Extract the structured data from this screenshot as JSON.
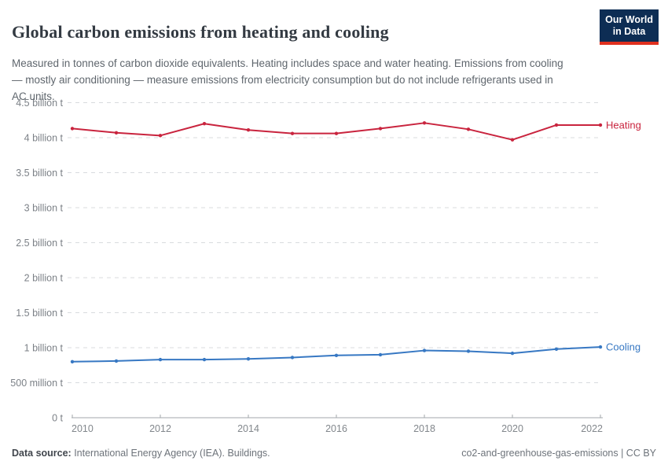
{
  "header": {
    "title": "Global carbon emissions from heating and cooling",
    "subtitle": "Measured in tonnes of carbon dioxide equivalents. Heating includes space and water heating. Emissions from cooling — mostly air conditioning — measure emissions from electricity consumption but do not include refrigerants used in AC units.",
    "logo": {
      "line1": "Our World",
      "line2": "in Data",
      "bg_color": "#0d2d54",
      "accent_color": "#e0301f"
    }
  },
  "chart_data": {
    "type": "line",
    "x": [
      2010,
      2011,
      2012,
      2013,
      2014,
      2015,
      2016,
      2017,
      2018,
      2019,
      2020,
      2021,
      2022
    ],
    "series": [
      {
        "name": "Heating",
        "color": "#c9243e",
        "values": [
          4.13,
          4.07,
          4.03,
          4.2,
          4.11,
          4.06,
          4.06,
          4.13,
          4.21,
          4.12,
          3.97,
          4.18,
          4.18
        ]
      },
      {
        "name": "Cooling",
        "color": "#3778c3",
        "values": [
          0.8,
          0.81,
          0.83,
          0.83,
          0.84,
          0.86,
          0.89,
          0.9,
          0.96,
          0.95,
          0.92,
          0.98,
          1.01
        ]
      }
    ],
    "unit": "billion tonnes CO2-equivalents",
    "xlim": [
      2010,
      2022
    ],
    "ylim": [
      0,
      4.5
    ],
    "grid": "horizontal-dashed",
    "legend_position": "right-of-line-ends",
    "xticks": [
      2010,
      2012,
      2014,
      2016,
      2018,
      2020,
      2022
    ],
    "yticks": [
      {
        "value": 0,
        "label": "0 t"
      },
      {
        "value": 0.5,
        "label": "500 million t"
      },
      {
        "value": 1,
        "label": "1 billion t"
      },
      {
        "value": 1.5,
        "label": "1.5 billion t"
      },
      {
        "value": 2,
        "label": "2 billion t"
      },
      {
        "value": 2.5,
        "label": "2.5 billion t"
      },
      {
        "value": 3,
        "label": "3 billion t"
      },
      {
        "value": 3.5,
        "label": "3.5 billion t"
      },
      {
        "value": 4,
        "label": "4 billion t"
      },
      {
        "value": 4.5,
        "label": "4.5 billion t"
      }
    ]
  },
  "footer": {
    "source_label": "Data source:",
    "source_value": " International Energy Agency (IEA). Buildings.",
    "right_text": "co2-and-greenhouse-gas-emissions | CC BY"
  }
}
